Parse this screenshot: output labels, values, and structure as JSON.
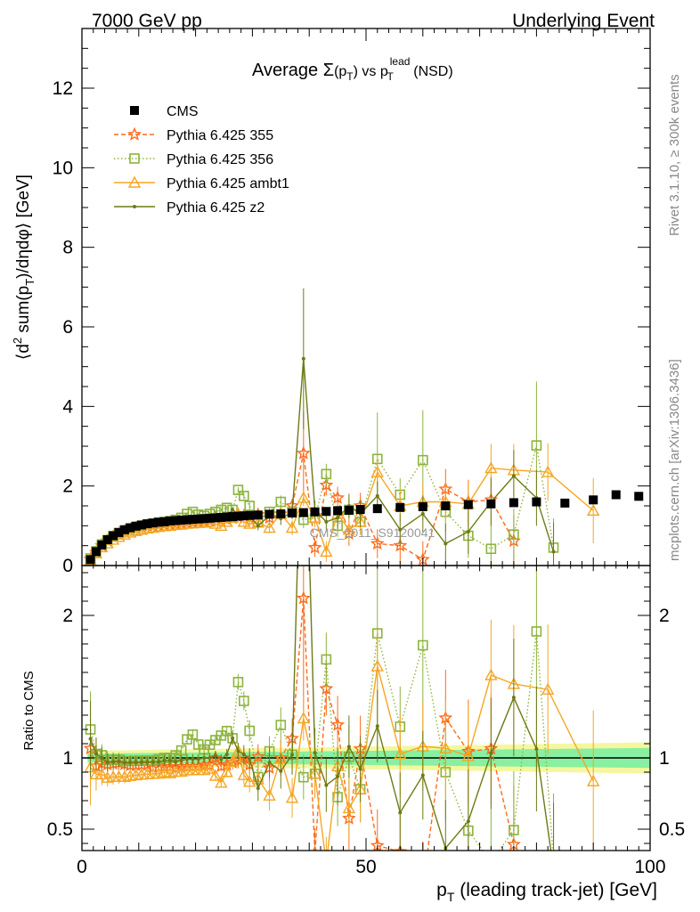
{
  "header": {
    "left": "7000 GeV pp",
    "right": "Underlying Event"
  },
  "plot_title": {
    "prefix": "Average ",
    "sigma": "Σ",
    "paren_open": "(p",
    "sub_T": "T",
    "paren_close": ")",
    "vs": " vs p",
    "sup_lead": "lead",
    "sub_T2": "T",
    "suffix": " (NSD)"
  },
  "y_label_main": {
    "open": "⟨d",
    "sup2": "2",
    "mid": " sum(p",
    "subT": "T",
    "rest": ")/dηdφ⟩ [GeV]"
  },
  "y_label_ratio": "Ratio to CMS",
  "x_label": {
    "p": "p",
    "sub": "T",
    "rest": " (leading track-jet) [GeV]"
  },
  "side_labels": {
    "rivet": "Rivet 3.1.10, ≥ 300k events",
    "mcplots": "mcplots.cern.ch [arXiv:1306.3436]"
  },
  "watermark": "CMS_2011_S9120041",
  "colors": {
    "cms": "#000000",
    "p355": "#ff6a1a",
    "p356": "#8cb43c",
    "ambt1": "#f5a623",
    "z2": "#6e7a14",
    "band_outer": "#f5f7a0",
    "band_inner": "#88f0a0"
  },
  "chart_data": {
    "type": "scatter",
    "x_label": "p_T (leading track-jet) [GeV]",
    "y_label": "<d^2 sum(p_T)/dηdφ> [GeV]",
    "xlim": [
      0,
      100
    ],
    "ylim_main": [
      0,
      13.5
    ],
    "ylim_ratio": [
      0.35,
      2.35
    ],
    "x_ticks": [
      0,
      50,
      100
    ],
    "y_ticks_main": [
      0,
      2,
      4,
      6,
      8,
      10,
      12
    ],
    "y_ticks_ratio": [
      0.5,
      1,
      2
    ],
    "legend_position": "top-left",
    "series": [
      {
        "name": "CMS",
        "key": "cms",
        "marker": "square-filled",
        "line": "none",
        "x": [
          1.5,
          2.5,
          3.5,
          4.5,
          5.5,
          6.5,
          7.5,
          8.5,
          9.5,
          10.5,
          11.5,
          12.5,
          13.5,
          14.5,
          15.5,
          16.5,
          17.5,
          18.5,
          19.5,
          20.5,
          21.5,
          22.5,
          23.5,
          24.5,
          25.5,
          26.5,
          27.5,
          28.5,
          29.5,
          31,
          33,
          35,
          37,
          39,
          41,
          43,
          45,
          47,
          49,
          52,
          56,
          60,
          64,
          68,
          72,
          76,
          80,
          85,
          90,
          94,
          98
        ],
        "y": [
          0.15,
          0.35,
          0.52,
          0.65,
          0.75,
          0.83,
          0.9,
          0.95,
          0.99,
          1.02,
          1.05,
          1.07,
          1.09,
          1.1,
          1.12,
          1.13,
          1.14,
          1.15,
          1.16,
          1.17,
          1.18,
          1.19,
          1.2,
          1.21,
          1.22,
          1.23,
          1.24,
          1.25,
          1.26,
          1.27,
          1.29,
          1.3,
          1.32,
          1.33,
          1.35,
          1.36,
          1.38,
          1.39,
          1.41,
          1.43,
          1.46,
          1.48,
          1.5,
          1.53,
          1.55,
          1.58,
          1.6,
          1.57,
          1.65,
          1.78,
          1.74
        ]
      },
      {
        "name": "Pythia 6.425 355",
        "key": "p355",
        "marker": "star-open",
        "line": "dashed",
        "x": [
          1.5,
          2.5,
          3.5,
          4.5,
          5.5,
          6.5,
          7.5,
          8.5,
          9.5,
          10.5,
          11.5,
          12.5,
          13.5,
          14.5,
          15.5,
          16.5,
          17.5,
          18.5,
          19.5,
          20.5,
          21.5,
          22.5,
          23.5,
          24.5,
          25.5,
          26.5,
          27.5,
          28.5,
          29.5,
          31,
          33,
          35,
          37,
          39,
          41,
          43,
          45,
          47,
          49,
          52,
          56,
          60,
          64,
          68,
          72,
          76
        ],
        "y": [
          0.16,
          0.33,
          0.5,
          0.62,
          0.72,
          0.8,
          0.86,
          0.9,
          0.94,
          0.97,
          1.0,
          1.0,
          1.02,
          1.03,
          1.05,
          1.05,
          1.07,
          1.08,
          1.09,
          1.1,
          1.12,
          1.13,
          1.2,
          1.14,
          1.16,
          1.19,
          1.22,
          1.25,
          1.2,
          1.28,
          1.2,
          1.3,
          1.5,
          2.82,
          0.45,
          2.02,
          1.7,
          0.8,
          1.5,
          0.55,
          0.5,
          0.15,
          1.92,
          1.6,
          1.65,
          0.62
        ]
      },
      {
        "name": "Pythia 6.425 356",
        "key": "p356",
        "marker": "square-open",
        "line": "dotted",
        "x": [
          1.5,
          2.5,
          3.5,
          4.5,
          5.5,
          6.5,
          7.5,
          8.5,
          9.5,
          10.5,
          11.5,
          12.5,
          13.5,
          14.5,
          15.5,
          16.5,
          17.5,
          18.5,
          19.5,
          20.5,
          21.5,
          22.5,
          23.5,
          24.5,
          25.5,
          26.5,
          27.5,
          28.5,
          29.5,
          31,
          33,
          35,
          37,
          39,
          41,
          43,
          45,
          47,
          49,
          52,
          56,
          60,
          64,
          68,
          72,
          76,
          80,
          83
        ],
        "y": [
          0.18,
          0.36,
          0.53,
          0.64,
          0.74,
          0.82,
          0.88,
          0.93,
          0.97,
          1.0,
          1.03,
          1.05,
          1.08,
          1.1,
          1.12,
          1.15,
          1.2,
          1.3,
          1.35,
          1.28,
          1.25,
          1.3,
          1.35,
          1.4,
          1.45,
          1.4,
          1.9,
          1.75,
          1.5,
          1.1,
          1.35,
          1.6,
          1.35,
          1.15,
          1.2,
          2.3,
          1.0,
          1.4,
          1.1,
          2.68,
          1.78,
          2.65,
          1.35,
          0.75,
          0.42,
          0.78,
          3.02,
          0.45
        ]
      },
      {
        "name": "Pythia 6.425 ambt1",
        "key": "ambt1",
        "marker": "triangle-open",
        "line": "solid",
        "x": [
          1.5,
          2.5,
          3.5,
          4.5,
          5.5,
          6.5,
          7.5,
          8.5,
          9.5,
          10.5,
          11.5,
          12.5,
          13.5,
          14.5,
          15.5,
          16.5,
          17.5,
          18.5,
          19.5,
          20.5,
          21.5,
          22.5,
          23.5,
          24.5,
          25.5,
          26.5,
          27.5,
          28.5,
          29.5,
          31,
          33,
          35,
          37,
          39,
          41,
          43,
          45,
          47,
          49,
          52,
          56,
          60,
          64,
          68,
          72,
          76,
          82,
          90
        ],
        "y": [
          0.14,
          0.31,
          0.46,
          0.56,
          0.65,
          0.72,
          0.78,
          0.83,
          0.87,
          0.9,
          0.93,
          0.95,
          0.97,
          0.99,
          1.0,
          1.02,
          1.03,
          1.05,
          1.06,
          1.07,
          1.08,
          1.1,
          1.05,
          1.0,
          1.1,
          1.2,
          1.3,
          1.1,
          1.05,
          1.08,
          0.95,
          1.3,
          0.95,
          1.7,
          1.2,
          0.35,
          1.3,
          0.9,
          1.1,
          2.35,
          1.5,
          1.6,
          1.6,
          1.55,
          2.45,
          2.4,
          2.35,
          1.38
        ]
      },
      {
        "name": "Pythia 6.425 z2",
        "key": "z2",
        "marker": "dot",
        "line": "solid",
        "x": [
          1.5,
          2.5,
          3.5,
          4.5,
          5.5,
          6.5,
          7.5,
          8.5,
          9.5,
          10.5,
          11.5,
          12.5,
          13.5,
          14.5,
          15.5,
          16.5,
          17.5,
          18.5,
          19.5,
          20.5,
          21.5,
          22.5,
          23.5,
          24.5,
          25.5,
          26.5,
          27.5,
          28.5,
          29.5,
          31,
          33,
          35,
          37,
          39,
          41,
          43,
          45,
          47,
          49,
          52,
          56,
          60,
          64,
          68,
          72,
          76,
          80,
          83
        ],
        "y": [
          0.17,
          0.36,
          0.52,
          0.63,
          0.73,
          0.81,
          0.87,
          0.92,
          0.96,
          0.99,
          1.02,
          1.04,
          1.06,
          1.08,
          1.1,
          1.1,
          1.12,
          1.14,
          1.15,
          1.16,
          1.18,
          1.19,
          1.22,
          1.2,
          1.25,
          1.4,
          1.3,
          1.28,
          1.25,
          1.0,
          1.25,
          1.18,
          1.35,
          5.2,
          1.4,
          1.1,
          1.2,
          1.5,
          1.3,
          1.75,
          0.9,
          1.3,
          0.55,
          0.85,
          1.6,
          2.25,
          1.7,
          0.35
        ]
      }
    ],
    "bands": {
      "x": [
        1,
        100
      ],
      "inner_halfwidth": [
        0.03,
        0.07
      ],
      "outer_halfwidth": [
        0.05,
        0.11
      ]
    }
  }
}
